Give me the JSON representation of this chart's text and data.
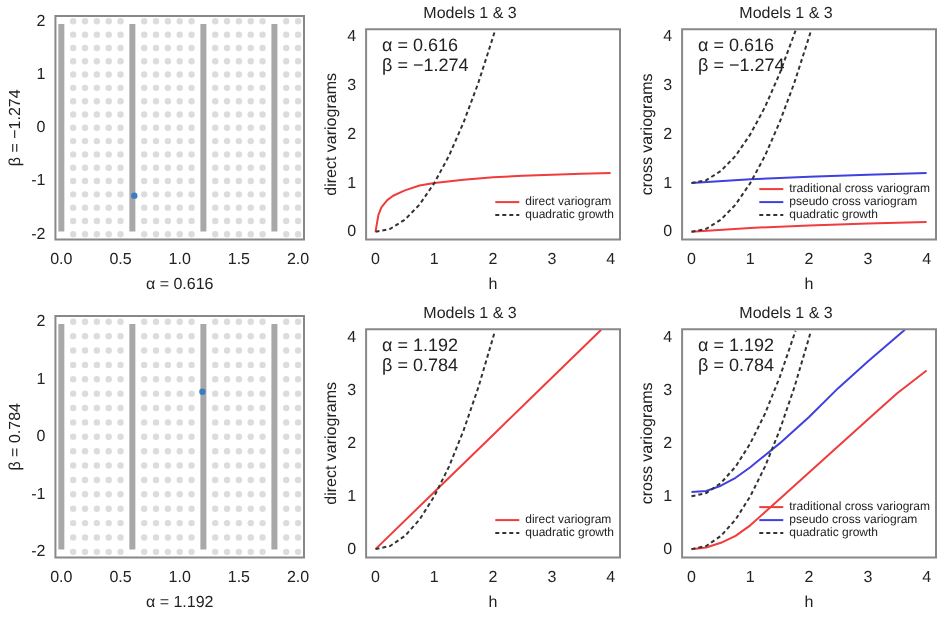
{
  "chart_data": [
    {
      "type": "scatter",
      "xlabel": "α = 0.616",
      "ylabel": "β = −1.274",
      "marker": "circle",
      "xlim": [
        -0.05,
        2.05
      ],
      "ylim": [
        -2.1,
        2.1
      ],
      "xticks": [
        {
          "value": 0,
          "label": "0.0"
        },
        0.5,
        {
          "value": 1,
          "label": "1.0"
        },
        1.5,
        {
          "value": 2,
          "label": "2.0"
        }
      ],
      "yticks": [
        -2,
        -1,
        0,
        1,
        2
      ],
      "ref_lines": [
        {
          "axis": "x",
          "value": 0,
          "color": "#a8a8a8"
        },
        {
          "axis": "x",
          "value": 0.6,
          "color": "#a8a8a8"
        },
        {
          "axis": "x",
          "value": 1.2,
          "color": "#a8a8a8"
        },
        {
          "axis": "x",
          "value": 1.8,
          "color": "#a8a8a8"
        }
      ],
      "series": [
        {
          "color": "#dcdcdc",
          "x": [
            0.1,
            0.1,
            0.1,
            0.1,
            0.1,
            0.1,
            0.1,
            0.1,
            0.1,
            0.1,
            0.1,
            0.1,
            0.1,
            0.1,
            0.1,
            0.1,
            0.1
          ],
          "values": [
            -2,
            -1.75,
            -1.5,
            -1.25,
            -1,
            -0.75,
            -0.5,
            -0.25,
            0,
            0.25,
            0.5,
            0.75,
            1,
            1.25,
            1.5,
            1.75,
            2
          ]
        },
        {
          "color": "#dcdcdc",
          "x": [
            0.2,
            0.2,
            0.2,
            0.2,
            0.2,
            0.2,
            0.2,
            0.2,
            0.2,
            0.2,
            0.2,
            0.2,
            0.2,
            0.2,
            0.2,
            0.2,
            0.2
          ],
          "values": [
            -2,
            -1.75,
            -1.5,
            -1.25,
            -1,
            -0.75,
            -0.5,
            -0.25,
            0,
            0.25,
            0.5,
            0.75,
            1,
            1.25,
            1.5,
            1.75,
            2
          ]
        },
        {
          "color": "#dcdcdc",
          "x": [
            0.3,
            0.3,
            0.3,
            0.3,
            0.3,
            0.3,
            0.3,
            0.3,
            0.3,
            0.3,
            0.3,
            0.3,
            0.3,
            0.3,
            0.3,
            0.3,
            0.3
          ],
          "values": [
            -2,
            -1.75,
            -1.5,
            -1.25,
            -1,
            -0.75,
            -0.5,
            -0.25,
            0,
            0.25,
            0.5,
            0.75,
            1,
            1.25,
            1.5,
            1.75,
            2
          ]
        },
        {
          "color": "#dcdcdc",
          "x": [
            0.4,
            0.4,
            0.4,
            0.4,
            0.4,
            0.4,
            0.4,
            0.4,
            0.4,
            0.4,
            0.4,
            0.4,
            0.4,
            0.4,
            0.4,
            0.4,
            0.4
          ],
          "values": [
            -2,
            -1.75,
            -1.5,
            -1.25,
            -1,
            -0.75,
            -0.5,
            -0.25,
            0,
            0.25,
            0.5,
            0.75,
            1,
            1.25,
            1.5,
            1.75,
            2
          ]
        },
        {
          "color": "#dcdcdc",
          "x": [
            0.5,
            0.5,
            0.5,
            0.5,
            0.5,
            0.5,
            0.5,
            0.5,
            0.5,
            0.5,
            0.5,
            0.5,
            0.5,
            0.5,
            0.5,
            0.5,
            0.5
          ],
          "values": [
            -2,
            -1.75,
            -1.5,
            -1.25,
            -1,
            -0.75,
            -0.5,
            -0.25,
            0,
            0.25,
            0.5,
            0.75,
            1,
            1.25,
            1.5,
            1.75,
            2
          ]
        },
        {
          "color": "#dcdcdc",
          "x": [
            0.7,
            0.7,
            0.7,
            0.7,
            0.7,
            0.7,
            0.7,
            0.7,
            0.7,
            0.7,
            0.7,
            0.7,
            0.7,
            0.7,
            0.7,
            0.7,
            0.7
          ],
          "values": [
            -2,
            -1.75,
            -1.5,
            -1.25,
            -1,
            -0.75,
            -0.5,
            -0.25,
            0,
            0.25,
            0.5,
            0.75,
            1,
            1.25,
            1.5,
            1.75,
            2
          ]
        },
        {
          "color": "#dcdcdc",
          "x": [
            0.8,
            0.8,
            0.8,
            0.8,
            0.8,
            0.8,
            0.8,
            0.8,
            0.8,
            0.8,
            0.8,
            0.8,
            0.8,
            0.8,
            0.8,
            0.8,
            0.8
          ],
          "values": [
            -2,
            -1.75,
            -1.5,
            -1.25,
            -1,
            -0.75,
            -0.5,
            -0.25,
            0,
            0.25,
            0.5,
            0.75,
            1,
            1.25,
            1.5,
            1.75,
            2
          ]
        },
        {
          "color": "#dcdcdc",
          "x": [
            0.9,
            0.9,
            0.9,
            0.9,
            0.9,
            0.9,
            0.9,
            0.9,
            0.9,
            0.9,
            0.9,
            0.9,
            0.9,
            0.9,
            0.9,
            0.9,
            0.9
          ],
          "values": [
            -2,
            -1.75,
            -1.5,
            -1.25,
            -1,
            -0.75,
            -0.5,
            -0.25,
            0,
            0.25,
            0.5,
            0.75,
            1,
            1.25,
            1.5,
            1.75,
            2
          ]
        },
        {
          "color": "#dcdcdc",
          "x": [
            1,
            1,
            1,
            1,
            1,
            1,
            1,
            1,
            1,
            1,
            1,
            1,
            1,
            1,
            1,
            1,
            1
          ],
          "values": [
            -2,
            -1.75,
            -1.5,
            -1.25,
            -1,
            -0.75,
            -0.5,
            -0.25,
            0,
            0.25,
            0.5,
            0.75,
            1,
            1.25,
            1.5,
            1.75,
            2
          ]
        },
        {
          "color": "#dcdcdc",
          "x": [
            1.1,
            1.1,
            1.1,
            1.1,
            1.1,
            1.1,
            1.1,
            1.1,
            1.1,
            1.1,
            1.1,
            1.1,
            1.1,
            1.1,
            1.1,
            1.1,
            1.1
          ],
          "values": [
            -2,
            -1.75,
            -1.5,
            -1.25,
            -1,
            -0.75,
            -0.5,
            -0.25,
            0,
            0.25,
            0.5,
            0.75,
            1,
            1.25,
            1.5,
            1.75,
            2
          ]
        },
        {
          "color": "#dcdcdc",
          "x": [
            1.3,
            1.3,
            1.3,
            1.3,
            1.3,
            1.3,
            1.3,
            1.3,
            1.3,
            1.3,
            1.3,
            1.3,
            1.3,
            1.3,
            1.3,
            1.3,
            1.3
          ],
          "values": [
            -2,
            -1.75,
            -1.5,
            -1.25,
            -1,
            -0.75,
            -0.5,
            -0.25,
            0,
            0.25,
            0.5,
            0.75,
            1,
            1.25,
            1.5,
            1.75,
            2
          ]
        },
        {
          "color": "#dcdcdc",
          "x": [
            1.4,
            1.4,
            1.4,
            1.4,
            1.4,
            1.4,
            1.4,
            1.4,
            1.4,
            1.4,
            1.4,
            1.4,
            1.4,
            1.4,
            1.4,
            1.4,
            1.4
          ],
          "values": [
            -2,
            -1.75,
            -1.5,
            -1.25,
            -1,
            -0.75,
            -0.5,
            -0.25,
            0,
            0.25,
            0.5,
            0.75,
            1,
            1.25,
            1.5,
            1.75,
            2
          ]
        },
        {
          "color": "#dcdcdc",
          "x": [
            1.5,
            1.5,
            1.5,
            1.5,
            1.5,
            1.5,
            1.5,
            1.5,
            1.5,
            1.5,
            1.5,
            1.5,
            1.5,
            1.5,
            1.5,
            1.5,
            1.5
          ],
          "values": [
            -2,
            -1.75,
            -1.5,
            -1.25,
            -1,
            -0.75,
            -0.5,
            -0.25,
            0,
            0.25,
            0.5,
            0.75,
            1,
            1.25,
            1.5,
            1.75,
            2
          ]
        },
        {
          "color": "#dcdcdc",
          "x": [
            1.6,
            1.6,
            1.6,
            1.6,
            1.6,
            1.6,
            1.6,
            1.6,
            1.6,
            1.6,
            1.6,
            1.6,
            1.6,
            1.6,
            1.6,
            1.6,
            1.6
          ],
          "values": [
            -2,
            -1.75,
            -1.5,
            -1.25,
            -1,
            -0.75,
            -0.5,
            -0.25,
            0,
            0.25,
            0.5,
            0.75,
            1,
            1.25,
            1.5,
            1.75,
            2
          ]
        },
        {
          "color": "#dcdcdc",
          "x": [
            1.7,
            1.7,
            1.7,
            1.7,
            1.7,
            1.7,
            1.7,
            1.7,
            1.7,
            1.7,
            1.7,
            1.7,
            1.7,
            1.7,
            1.7,
            1.7,
            1.7
          ],
          "values": [
            -2,
            -1.75,
            -1.5,
            -1.25,
            -1,
            -0.75,
            -0.5,
            -0.25,
            0,
            0.25,
            0.5,
            0.75,
            1,
            1.25,
            1.5,
            1.75,
            2
          ]
        },
        {
          "color": "#dcdcdc",
          "x": [
            1.9,
            1.9,
            1.9,
            1.9,
            1.9,
            1.9,
            1.9,
            1.9,
            1.9,
            1.9,
            1.9,
            1.9,
            1.9,
            1.9,
            1.9,
            1.9,
            1.9
          ],
          "values": [
            -2,
            -1.75,
            -1.5,
            -1.25,
            -1,
            -0.75,
            -0.5,
            -0.25,
            0,
            0.25,
            0.5,
            0.75,
            1,
            1.25,
            1.5,
            1.75,
            2
          ]
        },
        {
          "color": "#dcdcdc",
          "x": [
            2,
            2,
            2,
            2,
            2,
            2,
            2,
            2,
            2,
            2,
            2,
            2,
            2,
            2,
            2,
            2,
            2
          ],
          "values": [
            -2,
            -1.75,
            -1.5,
            -1.25,
            -1,
            -0.75,
            -0.5,
            -0.25,
            0,
            0.25,
            0.5,
            0.75,
            1,
            1.25,
            1.5,
            1.75,
            2
          ]
        },
        {
          "color": "#3b7dc4",
          "x": [
            0.616
          ],
          "values": [
            -1.274
          ]
        }
      ]
    },
    {
      "type": "line",
      "title": "Models 1 & 3",
      "xlabel": "h",
      "ylabel": "direct variograms",
      "marker": "none",
      "legend": "bottom right",
      "annotations": [
        "α = 0.616",
        "β = −1.274"
      ],
      "xlim": [
        -0.16,
        4.16
      ],
      "ylim": [
        -0.16,
        4.16
      ],
      "xticks": [
        0,
        1,
        2,
        3,
        4
      ],
      "yticks": [
        0,
        1,
        2,
        3,
        4
      ],
      "series": [
        {
          "name": "direct variogram",
          "color": "#f03c3c",
          "line_style": "solid",
          "x": [
            0,
            0.05,
            0.1,
            0.2,
            0.3,
            0.5,
            0.75,
            1,
            1.5,
            2,
            2.5,
            3,
            3.5,
            4
          ],
          "values": [
            0,
            0.35,
            0.5,
            0.65,
            0.74,
            0.85,
            0.95,
            1,
            1.07,
            1.12,
            1.15,
            1.17,
            1.19,
            1.21
          ]
        },
        {
          "name": "quadratic growth",
          "color": "#333333",
          "line_style": "dashed",
          "x": [
            0,
            0.25,
            0.5,
            0.75,
            1,
            1.25,
            1.5,
            1.75,
            2,
            2.03
          ],
          "values": [
            0,
            0.06,
            0.25,
            0.56,
            1,
            1.56,
            2.25,
            3.06,
            4,
            4.12
          ]
        }
      ]
    },
    {
      "type": "line",
      "title": "Models 1 & 3",
      "xlabel": "h",
      "ylabel": "cross variograms",
      "marker": "none",
      "legend": "bottom right",
      "annotations": [
        "α = 0.616",
        "β = −1.274"
      ],
      "xlim": [
        -0.16,
        4.16
      ],
      "ylim": [
        -0.16,
        4.16
      ],
      "xticks": [
        0,
        1,
        2,
        3,
        4
      ],
      "yticks": [
        0,
        1,
        2,
        3,
        4
      ],
      "series": [
        {
          "name": "traditional cross variogram",
          "color": "#f03c3c",
          "line_style": "solid",
          "x": [
            0,
            1,
            2,
            3,
            4
          ],
          "values": [
            0,
            0.08,
            0.13,
            0.17,
            0.2
          ]
        },
        {
          "name": "pseudo cross variogram",
          "color": "#4040e0",
          "line_style": "solid",
          "x": [
            0,
            1,
            2,
            3,
            4
          ],
          "values": [
            1,
            1.08,
            1.13,
            1.17,
            1.21
          ]
        },
        {
          "name": "quadratic growth",
          "color": "#333333",
          "line_style": "dashed",
          "x": [
            0,
            0.25,
            0.5,
            0.75,
            1,
            1.25,
            1.5,
            1.75,
            2,
            2.03
          ],
          "values": [
            0,
            0.06,
            0.25,
            0.56,
            1,
            1.56,
            2.25,
            3.06,
            4,
            4.12
          ]
        },
        {
          "color": "#333333",
          "line_style": "dashed",
          "x": [
            0,
            0.25,
            0.5,
            0.75,
            1,
            1.25,
            1.5,
            1.77
          ],
          "values": [
            1,
            1.06,
            1.25,
            1.56,
            2,
            2.56,
            3.25,
            4.13
          ]
        }
      ]
    },
    {
      "type": "scatter",
      "xlabel": "α = 1.192",
      "ylabel": "β = 0.784",
      "marker": "circle",
      "xlim": [
        -0.05,
        2.05
      ],
      "ylim": [
        -2.1,
        2.1
      ],
      "xticks": [
        {
          "value": 0,
          "label": "0.0"
        },
        0.5,
        {
          "value": 1,
          "label": "1.0"
        },
        1.5,
        {
          "value": 2,
          "label": "2.0"
        }
      ],
      "yticks": [
        -2,
        -1,
        0,
        1,
        2
      ],
      "ref_lines": [
        {
          "axis": "x",
          "value": 0,
          "color": "#a8a8a8"
        },
        {
          "axis": "x",
          "value": 0.6,
          "color": "#a8a8a8"
        },
        {
          "axis": "x",
          "value": 1.2,
          "color": "#a8a8a8"
        },
        {
          "axis": "x",
          "value": 1.8,
          "color": "#a8a8a8"
        }
      ],
      "series": [
        {
          "color": "#dcdcdc",
          "x": [
            0.1,
            0.1,
            0.1,
            0.1,
            0.1,
            0.1,
            0.1,
            0.1,
            0.1,
            0.1,
            0.1,
            0.1,
            0.1,
            0.1,
            0.1,
            0.1,
            0.1
          ],
          "values": [
            -2,
            -1.75,
            -1.5,
            -1.25,
            -1,
            -0.75,
            -0.5,
            -0.25,
            0,
            0.25,
            0.5,
            0.75,
            1,
            1.25,
            1.5,
            1.75,
            2
          ]
        },
        {
          "color": "#dcdcdc",
          "x": [
            0.2,
            0.2,
            0.2,
            0.2,
            0.2,
            0.2,
            0.2,
            0.2,
            0.2,
            0.2,
            0.2,
            0.2,
            0.2,
            0.2,
            0.2,
            0.2,
            0.2
          ],
          "values": [
            -2,
            -1.75,
            -1.5,
            -1.25,
            -1,
            -0.75,
            -0.5,
            -0.25,
            0,
            0.25,
            0.5,
            0.75,
            1,
            1.25,
            1.5,
            1.75,
            2
          ]
        },
        {
          "color": "#dcdcdc",
          "x": [
            0.3,
            0.3,
            0.3,
            0.3,
            0.3,
            0.3,
            0.3,
            0.3,
            0.3,
            0.3,
            0.3,
            0.3,
            0.3,
            0.3,
            0.3,
            0.3,
            0.3
          ],
          "values": [
            -2,
            -1.75,
            -1.5,
            -1.25,
            -1,
            -0.75,
            -0.5,
            -0.25,
            0,
            0.25,
            0.5,
            0.75,
            1,
            1.25,
            1.5,
            1.75,
            2
          ]
        },
        {
          "color": "#dcdcdc",
          "x": [
            0.4,
            0.4,
            0.4,
            0.4,
            0.4,
            0.4,
            0.4,
            0.4,
            0.4,
            0.4,
            0.4,
            0.4,
            0.4,
            0.4,
            0.4,
            0.4,
            0.4
          ],
          "values": [
            -2,
            -1.75,
            -1.5,
            -1.25,
            -1,
            -0.75,
            -0.5,
            -0.25,
            0,
            0.25,
            0.5,
            0.75,
            1,
            1.25,
            1.5,
            1.75,
            2
          ]
        },
        {
          "color": "#dcdcdc",
          "x": [
            0.5,
            0.5,
            0.5,
            0.5,
            0.5,
            0.5,
            0.5,
            0.5,
            0.5,
            0.5,
            0.5,
            0.5,
            0.5,
            0.5,
            0.5,
            0.5,
            0.5
          ],
          "values": [
            -2,
            -1.75,
            -1.5,
            -1.25,
            -1,
            -0.75,
            -0.5,
            -0.25,
            0,
            0.25,
            0.5,
            0.75,
            1,
            1.25,
            1.5,
            1.75,
            2
          ]
        },
        {
          "color": "#dcdcdc",
          "x": [
            0.7,
            0.7,
            0.7,
            0.7,
            0.7,
            0.7,
            0.7,
            0.7,
            0.7,
            0.7,
            0.7,
            0.7,
            0.7,
            0.7,
            0.7,
            0.7,
            0.7
          ],
          "values": [
            -2,
            -1.75,
            -1.5,
            -1.25,
            -1,
            -0.75,
            -0.5,
            -0.25,
            0,
            0.25,
            0.5,
            0.75,
            1,
            1.25,
            1.5,
            1.75,
            2
          ]
        },
        {
          "color": "#dcdcdc",
          "x": [
            0.8,
            0.8,
            0.8,
            0.8,
            0.8,
            0.8,
            0.8,
            0.8,
            0.8,
            0.8,
            0.8,
            0.8,
            0.8,
            0.8,
            0.8,
            0.8,
            0.8
          ],
          "values": [
            -2,
            -1.75,
            -1.5,
            -1.25,
            -1,
            -0.75,
            -0.5,
            -0.25,
            0,
            0.25,
            0.5,
            0.75,
            1,
            1.25,
            1.5,
            1.75,
            2
          ]
        },
        {
          "color": "#dcdcdc",
          "x": [
            0.9,
            0.9,
            0.9,
            0.9,
            0.9,
            0.9,
            0.9,
            0.9,
            0.9,
            0.9,
            0.9,
            0.9,
            0.9,
            0.9,
            0.9,
            0.9,
            0.9
          ],
          "values": [
            -2,
            -1.75,
            -1.5,
            -1.25,
            -1,
            -0.75,
            -0.5,
            -0.25,
            0,
            0.25,
            0.5,
            0.75,
            1,
            1.25,
            1.5,
            1.75,
            2
          ]
        },
        {
          "color": "#dcdcdc",
          "x": [
            1,
            1,
            1,
            1,
            1,
            1,
            1,
            1,
            1,
            1,
            1,
            1,
            1,
            1,
            1,
            1,
            1
          ],
          "values": [
            -2,
            -1.75,
            -1.5,
            -1.25,
            -1,
            -0.75,
            -0.5,
            -0.25,
            0,
            0.25,
            0.5,
            0.75,
            1,
            1.25,
            1.5,
            1.75,
            2
          ]
        },
        {
          "color": "#dcdcdc",
          "x": [
            1.1,
            1.1,
            1.1,
            1.1,
            1.1,
            1.1,
            1.1,
            1.1,
            1.1,
            1.1,
            1.1,
            1.1,
            1.1,
            1.1,
            1.1,
            1.1,
            1.1
          ],
          "values": [
            -2,
            -1.75,
            -1.5,
            -1.25,
            -1,
            -0.75,
            -0.5,
            -0.25,
            0,
            0.25,
            0.5,
            0.75,
            1,
            1.25,
            1.5,
            1.75,
            2
          ]
        },
        {
          "color": "#dcdcdc",
          "x": [
            1.3,
            1.3,
            1.3,
            1.3,
            1.3,
            1.3,
            1.3,
            1.3,
            1.3,
            1.3,
            1.3,
            1.3,
            1.3,
            1.3,
            1.3,
            1.3,
            1.3
          ],
          "values": [
            -2,
            -1.75,
            -1.5,
            -1.25,
            -1,
            -0.75,
            -0.5,
            -0.25,
            0,
            0.25,
            0.5,
            0.75,
            1,
            1.25,
            1.5,
            1.75,
            2
          ]
        },
        {
          "color": "#dcdcdc",
          "x": [
            1.4,
            1.4,
            1.4,
            1.4,
            1.4,
            1.4,
            1.4,
            1.4,
            1.4,
            1.4,
            1.4,
            1.4,
            1.4,
            1.4,
            1.4,
            1.4,
            1.4
          ],
          "values": [
            -2,
            -1.75,
            -1.5,
            -1.25,
            -1,
            -0.75,
            -0.5,
            -0.25,
            0,
            0.25,
            0.5,
            0.75,
            1,
            1.25,
            1.5,
            1.75,
            2
          ]
        },
        {
          "color": "#dcdcdc",
          "x": [
            1.5,
            1.5,
            1.5,
            1.5,
            1.5,
            1.5,
            1.5,
            1.5,
            1.5,
            1.5,
            1.5,
            1.5,
            1.5,
            1.5,
            1.5,
            1.5,
            1.5
          ],
          "values": [
            -2,
            -1.75,
            -1.5,
            -1.25,
            -1,
            -0.75,
            -0.5,
            -0.25,
            0,
            0.25,
            0.5,
            0.75,
            1,
            1.25,
            1.5,
            1.75,
            2
          ]
        },
        {
          "color": "#dcdcdc",
          "x": [
            1.6,
            1.6,
            1.6,
            1.6,
            1.6,
            1.6,
            1.6,
            1.6,
            1.6,
            1.6,
            1.6,
            1.6,
            1.6,
            1.6,
            1.6,
            1.6,
            1.6
          ],
          "values": [
            -2,
            -1.75,
            -1.5,
            -1.25,
            -1,
            -0.75,
            -0.5,
            -0.25,
            0,
            0.25,
            0.5,
            0.75,
            1,
            1.25,
            1.5,
            1.75,
            2
          ]
        },
        {
          "color": "#dcdcdc",
          "x": [
            1.7,
            1.7,
            1.7,
            1.7,
            1.7,
            1.7,
            1.7,
            1.7,
            1.7,
            1.7,
            1.7,
            1.7,
            1.7,
            1.7,
            1.7,
            1.7,
            1.7
          ],
          "values": [
            -2,
            -1.75,
            -1.5,
            -1.25,
            -1,
            -0.75,
            -0.5,
            -0.25,
            0,
            0.25,
            0.5,
            0.75,
            1,
            1.25,
            1.5,
            1.75,
            2
          ]
        },
        {
          "color": "#dcdcdc",
          "x": [
            1.9,
            1.9,
            1.9,
            1.9,
            1.9,
            1.9,
            1.9,
            1.9,
            1.9,
            1.9,
            1.9,
            1.9,
            1.9,
            1.9,
            1.9,
            1.9,
            1.9
          ],
          "values": [
            -2,
            -1.75,
            -1.5,
            -1.25,
            -1,
            -0.75,
            -0.5,
            -0.25,
            0,
            0.25,
            0.5,
            0.75,
            1,
            1.25,
            1.5,
            1.75,
            2
          ]
        },
        {
          "color": "#dcdcdc",
          "x": [
            2,
            2,
            2,
            2,
            2,
            2,
            2,
            2,
            2,
            2,
            2,
            2,
            2,
            2,
            2,
            2,
            2
          ],
          "values": [
            -2,
            -1.75,
            -1.5,
            -1.25,
            -1,
            -0.75,
            -0.5,
            -0.25,
            0,
            0.25,
            0.5,
            0.75,
            1,
            1.25,
            1.5,
            1.75,
            2
          ]
        },
        {
          "color": "#3b7dc4",
          "x": [
            1.192
          ],
          "values": [
            0.784
          ]
        }
      ]
    },
    {
      "type": "line",
      "title": "Models 1 & 3",
      "xlabel": "h",
      "ylabel": "direct variograms",
      "marker": "none",
      "legend": "bottom right",
      "annotations": [
        "α = 1.192",
        "β = 0.784"
      ],
      "xlim": [
        -0.16,
        4.16
      ],
      "ylim": [
        -0.16,
        4.16
      ],
      "xticks": [
        0,
        1,
        2,
        3,
        4
      ],
      "yticks": [
        0,
        1,
        2,
        3,
        4
      ],
      "series": [
        {
          "name": "direct variogram",
          "color": "#f03c3c",
          "line_style": "solid",
          "x": [
            0,
            1,
            2,
            3,
            3.84
          ],
          "values": [
            0,
            1.08,
            2.16,
            3.24,
            4.15
          ]
        },
        {
          "name": "quadratic growth",
          "color": "#333333",
          "line_style": "dashed",
          "x": [
            0,
            0.25,
            0.5,
            0.75,
            1,
            1.25,
            1.5,
            1.75,
            2,
            2.03
          ],
          "values": [
            0,
            0.06,
            0.25,
            0.56,
            1,
            1.56,
            2.25,
            3.06,
            4,
            4.12
          ]
        }
      ]
    },
    {
      "type": "line",
      "title": "Models 1 & 3",
      "xlabel": "h",
      "ylabel": "cross variograms",
      "marker": "none",
      "legend": "bottom right",
      "annotations": [
        "α = 1.192",
        "β = 0.784"
      ],
      "xlim": [
        -0.16,
        4.16
      ],
      "ylim": [
        -0.16,
        4.16
      ],
      "xticks": [
        0,
        1,
        2,
        3,
        4
      ],
      "yticks": [
        0,
        1,
        2,
        3,
        4
      ],
      "series": [
        {
          "name": "traditional cross variogram",
          "color": "#f03c3c",
          "line_style": "solid",
          "x": [
            0,
            0.25,
            0.5,
            0.75,
            1,
            1.5,
            2,
            2.5,
            3,
            3.5,
            4
          ],
          "values": [
            0,
            0.03,
            0.12,
            0.25,
            0.45,
            0.95,
            1.45,
            1.95,
            2.45,
            2.95,
            3.38
          ]
        },
        {
          "name": "pseudo cross variogram",
          "color": "#4040e0",
          "line_style": "solid",
          "x": [
            0,
            0.25,
            0.5,
            0.75,
            1,
            1.5,
            2,
            2.5,
            3,
            3.63
          ],
          "values": [
            1.08,
            1.1,
            1.2,
            1.35,
            1.55,
            2,
            2.5,
            3.05,
            3.55,
            4.15
          ]
        },
        {
          "name": "quadratic growth",
          "color": "#333333",
          "line_style": "dashed",
          "x": [
            0,
            0.25,
            0.5,
            0.75,
            1,
            1.25,
            1.5,
            1.75,
            2,
            2.03
          ],
          "values": [
            0,
            0.06,
            0.25,
            0.56,
            1,
            1.56,
            2.25,
            3.06,
            4,
            4.12
          ]
        },
        {
          "color": "#333333",
          "line_style": "dashed",
          "x": [
            0,
            0.25,
            0.5,
            0.75,
            1,
            1.25,
            1.5,
            1.77
          ],
          "values": [
            1,
            1.06,
            1.25,
            1.56,
            2,
            2.56,
            3.25,
            4.13
          ]
        }
      ]
    }
  ]
}
